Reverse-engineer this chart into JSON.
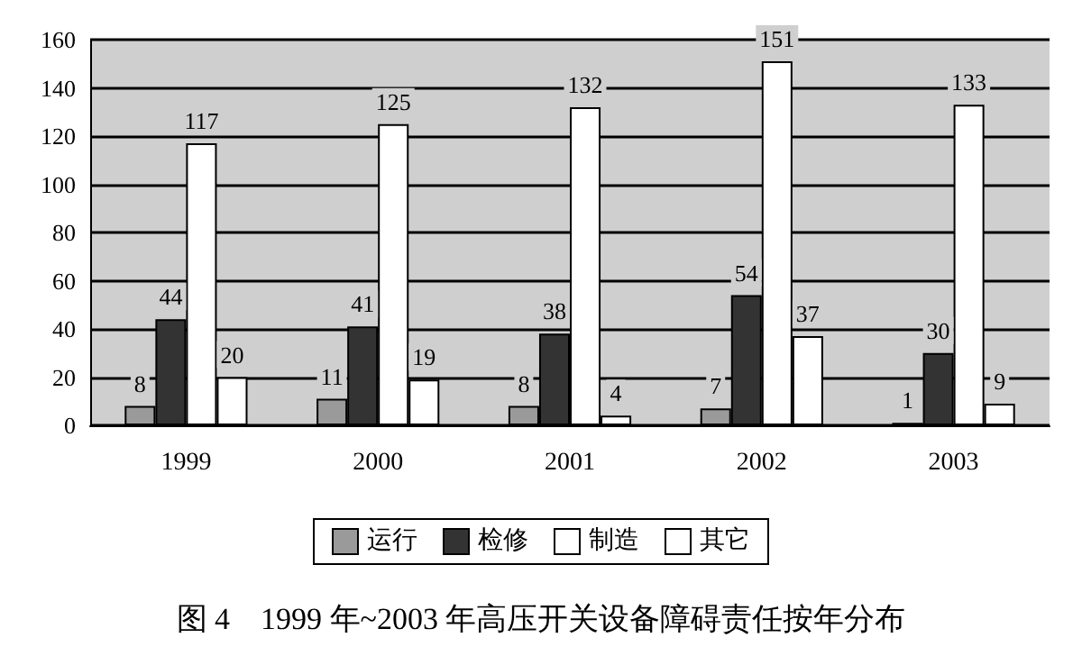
{
  "chart_data": {
    "type": "bar",
    "title": "图 4　1999 年~2003 年高压开关设备障碍责任按年分布",
    "categories": [
      "1999",
      "2000",
      "2001",
      "2002",
      "2003"
    ],
    "series": [
      {
        "name": "运行",
        "color": "#9a9a9a",
        "values": [
          8,
          11,
          8,
          7,
          1
        ]
      },
      {
        "name": "检修",
        "color": "#333333",
        "values": [
          44,
          41,
          38,
          54,
          30
        ]
      },
      {
        "name": "制造",
        "color": "#ffffff",
        "values": [
          117,
          125,
          132,
          151,
          133
        ]
      },
      {
        "name": "其它",
        "color": "#ffffff",
        "values": [
          20,
          19,
          4,
          37,
          9
        ]
      }
    ],
    "ylim": [
      0,
      160
    ],
    "yticks": [
      0,
      20,
      40,
      60,
      80,
      100,
      120,
      140,
      160
    ],
    "grid": "y",
    "legend": "bottom",
    "data_labels": true
  }
}
